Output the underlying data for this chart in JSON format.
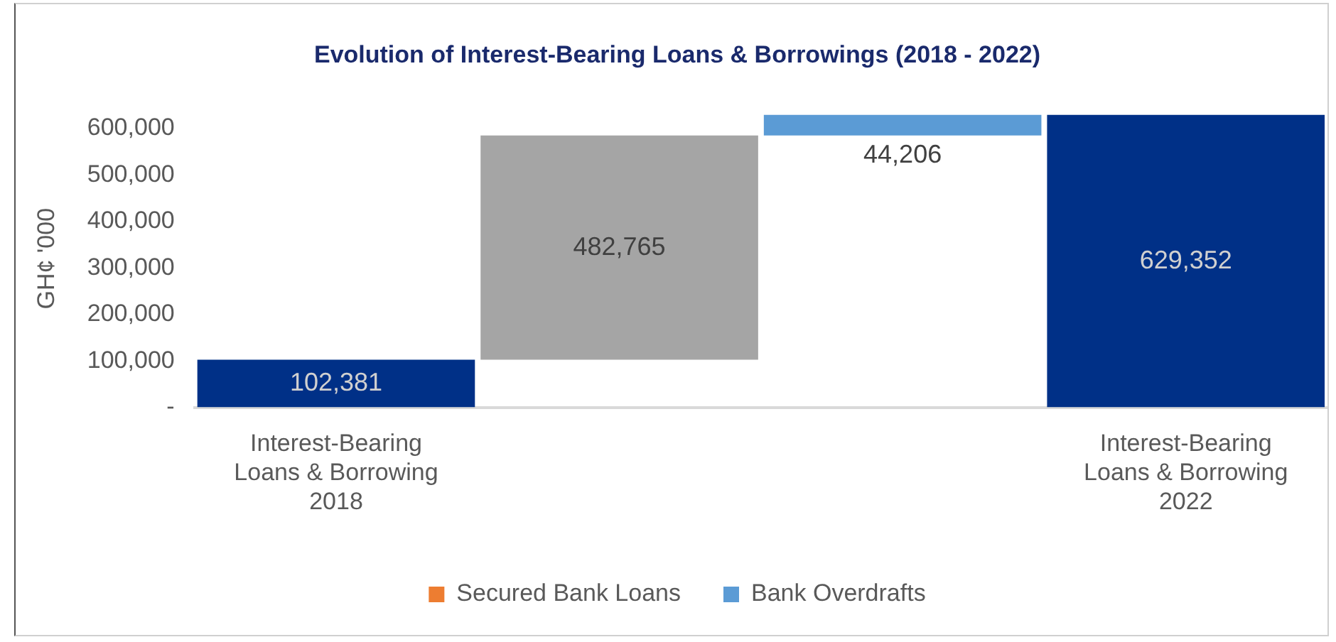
{
  "chart_data": {
    "type": "bar",
    "title": "Evolution of Interest-Bearing Loans & Borrowings (2018 - 2022)",
    "ylabel": "GH¢ '000",
    "categories": [
      "Interest-Bearing Loans & Borrowing 2018",
      null,
      null,
      "Interest-Bearing Loans & Borrowing 2022"
    ],
    "series": [
      {
        "color": "#003087",
        "values": [
          102381,
          null,
          null,
          629352
        ],
        "value_labels": [
          "102,381",
          null,
          null,
          "629,352"
        ]
      },
      {
        "color": "#a5a5a5",
        "values": [
          null,
          482765,
          null,
          null
        ],
        "base": [
          null,
          102381,
          null,
          null
        ],
        "value_labels": [
          null,
          "482,765",
          null,
          null
        ]
      },
      {
        "name": "Secured Bank Loans",
        "color": "#ed7d31",
        "values": [
          null,
          null,
          null,
          null
        ]
      },
      {
        "name": "Bank Overdrafts",
        "color": "#5b9bd5",
        "values": [
          null,
          null,
          44206,
          null
        ],
        "base": [
          null,
          null,
          585146,
          null
        ],
        "value_labels": [
          null,
          null,
          "44,206",
          null
        ]
      }
    ],
    "ylim": [
      0,
      640000
    ],
    "yticks": [
      {
        "value": 0,
        "label": "-"
      },
      {
        "value": 100000,
        "label": "100,000"
      },
      {
        "value": 200000,
        "label": "200,000"
      },
      {
        "value": 300000,
        "label": "300,000"
      },
      {
        "value": 400000,
        "label": "400,000"
      },
      {
        "value": 500000,
        "label": "500,000"
      },
      {
        "value": 600000,
        "label": "600,000"
      }
    ],
    "grid": false,
    "legend": "bottom"
  }
}
